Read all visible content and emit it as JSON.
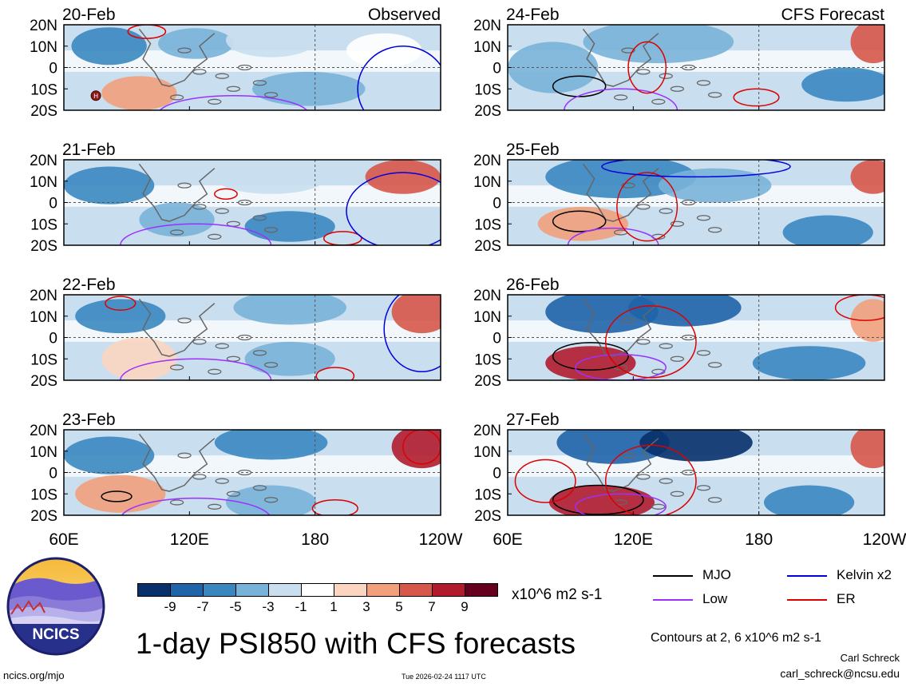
{
  "header": {
    "left_label": "Observed",
    "right_label": "CFS Forecast"
  },
  "chart_data": {
    "type": "heatmap",
    "title": "1-day PSI850 with CFS forecasts",
    "variable": "PSI850 anomaly",
    "units": "x10^6 m2 s-1",
    "x_ticks": [
      "60E",
      "120E",
      "180",
      "120W"
    ],
    "y_ticks": [
      "20N",
      "10N",
      "0",
      "10S",
      "20S"
    ],
    "x_range": [
      "60E",
      "120W"
    ],
    "y_range": [
      "20S",
      "20N"
    ],
    "colorbar": {
      "levels": [
        "-9",
        "-7",
        "-5",
        "-3",
        "-1",
        "1",
        "3",
        "5",
        "7",
        "9"
      ],
      "colors": [
        "#08306b",
        "#1f63a8",
        "#3a87c0",
        "#79b2d8",
        "#c9dff0",
        "#ffffff",
        "#fbd5c0",
        "#f2a07c",
        "#d7574a",
        "#b01c2e",
        "#67001f"
      ]
    },
    "panels": [
      {
        "date": "20-Feb",
        "kind": "Observed"
      },
      {
        "date": "21-Feb",
        "kind": "Observed"
      },
      {
        "date": "22-Feb",
        "kind": "Observed"
      },
      {
        "date": "23-Feb",
        "kind": "Observed"
      },
      {
        "date": "24-Feb",
        "kind": "CFS Forecast"
      },
      {
        "date": "25-Feb",
        "kind": "CFS Forecast"
      },
      {
        "date": "26-Feb",
        "kind": "CFS Forecast"
      },
      {
        "date": "27-Feb",
        "kind": "CFS Forecast"
      }
    ],
    "contour_legend": [
      {
        "name": "MJO",
        "color": "#000000"
      },
      {
        "name": "Kelvin x2",
        "color": "#0000dd"
      },
      {
        "name": "Low",
        "color": "#9b30ff"
      },
      {
        "name": "ER",
        "color": "#dd0000"
      }
    ],
    "contour_note": "Contours at 2, 6 x10^6 m2 s-1",
    "high_marker": "H"
  },
  "footer": {
    "website": "ncics.org/mjo",
    "timestamp": "Tue 2026-02-24 1117 UTC",
    "author": "Carl Schreck",
    "email": "carl_schreck@ncsu.edu",
    "logo_text": "NCICS"
  }
}
